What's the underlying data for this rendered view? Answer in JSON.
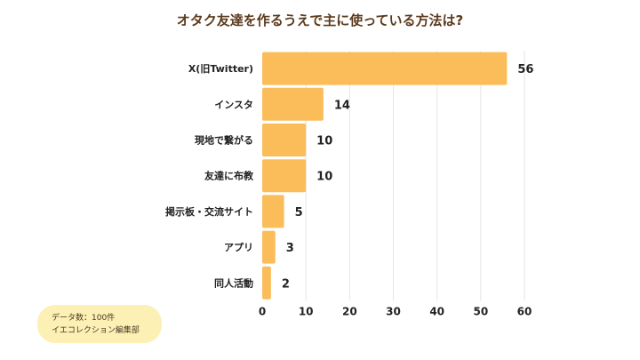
{
  "chart_data": {
    "type": "bar",
    "orientation": "horizontal",
    "title": "オタク友達を作るうえで主に使っている方法は?",
    "categories": [
      "X(旧Twitter)",
      "インスタ",
      "現地で繋がる",
      "友達に布教",
      "掲示板・交流サイト",
      "アプリ",
      "同人活動"
    ],
    "values": [
      56,
      14,
      10,
      10,
      5,
      3,
      2
    ],
    "xlim": [
      0,
      60
    ],
    "xticks": [
      "0",
      "10",
      "20",
      "30",
      "40",
      "50",
      "60"
    ],
    "grid": true,
    "bar_color": "#fbbd5a",
    "title_color": "#5b3a1c"
  },
  "note": {
    "line1": "データ数：100件",
    "line2": "イエコレクション編集部"
  }
}
